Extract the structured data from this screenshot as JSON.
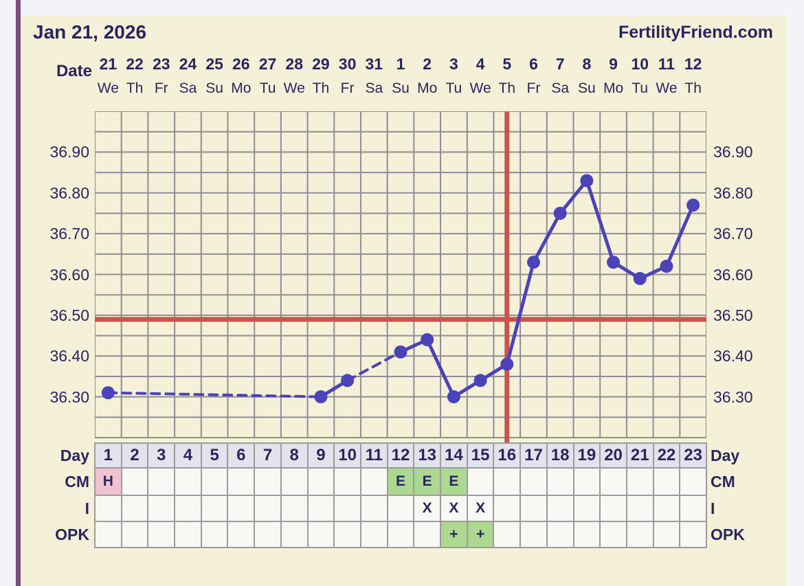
{
  "header": {
    "date_title": "Jan 21, 2026",
    "brand": "FertilityFriend.com"
  },
  "colors": {
    "navy_text": "#2a255e",
    "panel_cream": "#f5f1d8",
    "outer_gray": "#f4f3f8",
    "accent_bar_purple": "#7d4e7f",
    "grid_gray": "#8d8d94",
    "red_line": "#c9544a",
    "temp_line_purple": "#4c43b8",
    "cell_border_gray": "#9b9ba1",
    "cell_bg": "#f8f8f4",
    "day_header_bg": "#e3e3ec",
    "cell_pink": "#efc3cf",
    "cell_green": "#add890"
  },
  "chart_data": {
    "type": "line",
    "x_label_row": "Date",
    "dates": [
      "21",
      "22",
      "23",
      "24",
      "25",
      "26",
      "27",
      "28",
      "29",
      "30",
      "31",
      "1",
      "2",
      "3",
      "4",
      "5",
      "6",
      "7",
      "8",
      "9",
      "10",
      "11",
      "12"
    ],
    "weekdays": [
      "We",
      "Th",
      "Fr",
      "Sa",
      "Su",
      "Mo",
      "Tu",
      "We",
      "Th",
      "Fr",
      "Sa",
      "Su",
      "Mo",
      "Tu",
      "We",
      "Th",
      "Fr",
      "Sa",
      "Su",
      "Mo",
      "Tu",
      "We",
      "Th"
    ],
    "cycle_days": [
      1,
      2,
      3,
      4,
      5,
      6,
      7,
      8,
      9,
      10,
      11,
      12,
      13,
      14,
      15,
      16,
      17,
      18,
      19,
      20,
      21,
      22,
      23
    ],
    "temp_ticks": [
      "36.90",
      "36.80",
      "36.70",
      "36.60",
      "36.50",
      "36.40",
      "36.30"
    ],
    "ylim": [
      36.2,
      37.0
    ],
    "grid_step": 0.05,
    "grid": true,
    "points": [
      {
        "day": 1,
        "temp": 36.31
      },
      {
        "day": 9,
        "temp": 36.3
      },
      {
        "day": 10,
        "temp": 36.34
      },
      {
        "day": 12,
        "temp": 36.41
      },
      {
        "day": 13,
        "temp": 36.44
      },
      {
        "day": 14,
        "temp": 36.3
      },
      {
        "day": 15,
        "temp": 36.34
      },
      {
        "day": 16,
        "temp": 36.38
      },
      {
        "day": 17,
        "temp": 36.63
      },
      {
        "day": 18,
        "temp": 36.75
      },
      {
        "day": 19,
        "temp": 36.83
      },
      {
        "day": 20,
        "temp": 36.63
      },
      {
        "day": 21,
        "temp": 36.59
      },
      {
        "day": 22,
        "temp": 36.62
      },
      {
        "day": 23,
        "temp": 36.77
      }
    ],
    "missing_days": [
      2,
      3,
      4,
      5,
      6,
      7,
      8,
      11
    ],
    "coverline_temp": 36.49,
    "ovulation_line_day": 16
  },
  "table": {
    "rows": [
      {
        "label": "Day",
        "kind": "day-header",
        "cells": [
          {
            "day": 1,
            "text": "1"
          },
          {
            "day": 2,
            "text": "2"
          },
          {
            "day": 3,
            "text": "3"
          },
          {
            "day": 4,
            "text": "4"
          },
          {
            "day": 5,
            "text": "5"
          },
          {
            "day": 6,
            "text": "6"
          },
          {
            "day": 7,
            "text": "7"
          },
          {
            "day": 8,
            "text": "8"
          },
          {
            "day": 9,
            "text": "9"
          },
          {
            "day": 10,
            "text": "10"
          },
          {
            "day": 11,
            "text": "11"
          },
          {
            "day": 12,
            "text": "12"
          },
          {
            "day": 13,
            "text": "13"
          },
          {
            "day": 14,
            "text": "14"
          },
          {
            "day": 15,
            "text": "15"
          },
          {
            "day": 16,
            "text": "16"
          },
          {
            "day": 17,
            "text": "17"
          },
          {
            "day": 18,
            "text": "18"
          },
          {
            "day": 19,
            "text": "19"
          },
          {
            "day": 20,
            "text": "20"
          },
          {
            "day": 21,
            "text": "21"
          },
          {
            "day": 22,
            "text": "22"
          },
          {
            "day": 23,
            "text": "23"
          }
        ]
      },
      {
        "label": "CM",
        "kind": "data",
        "cells": [
          {
            "day": 1,
            "text": "H",
            "bg": "cell_pink"
          },
          {
            "day": 12,
            "text": "E",
            "bg": "cell_green"
          },
          {
            "day": 13,
            "text": "E",
            "bg": "cell_green"
          },
          {
            "day": 14,
            "text": "E",
            "bg": "cell_green"
          }
        ]
      },
      {
        "label": "I",
        "kind": "data",
        "cells": [
          {
            "day": 13,
            "text": "X"
          },
          {
            "day": 14,
            "text": "X"
          },
          {
            "day": 15,
            "text": "X"
          }
        ]
      },
      {
        "label": "OPK",
        "kind": "data",
        "cells": [
          {
            "day": 14,
            "text": "+",
            "bg": "cell_green"
          },
          {
            "day": 15,
            "text": "+",
            "bg": "cell_green"
          }
        ]
      }
    ]
  }
}
